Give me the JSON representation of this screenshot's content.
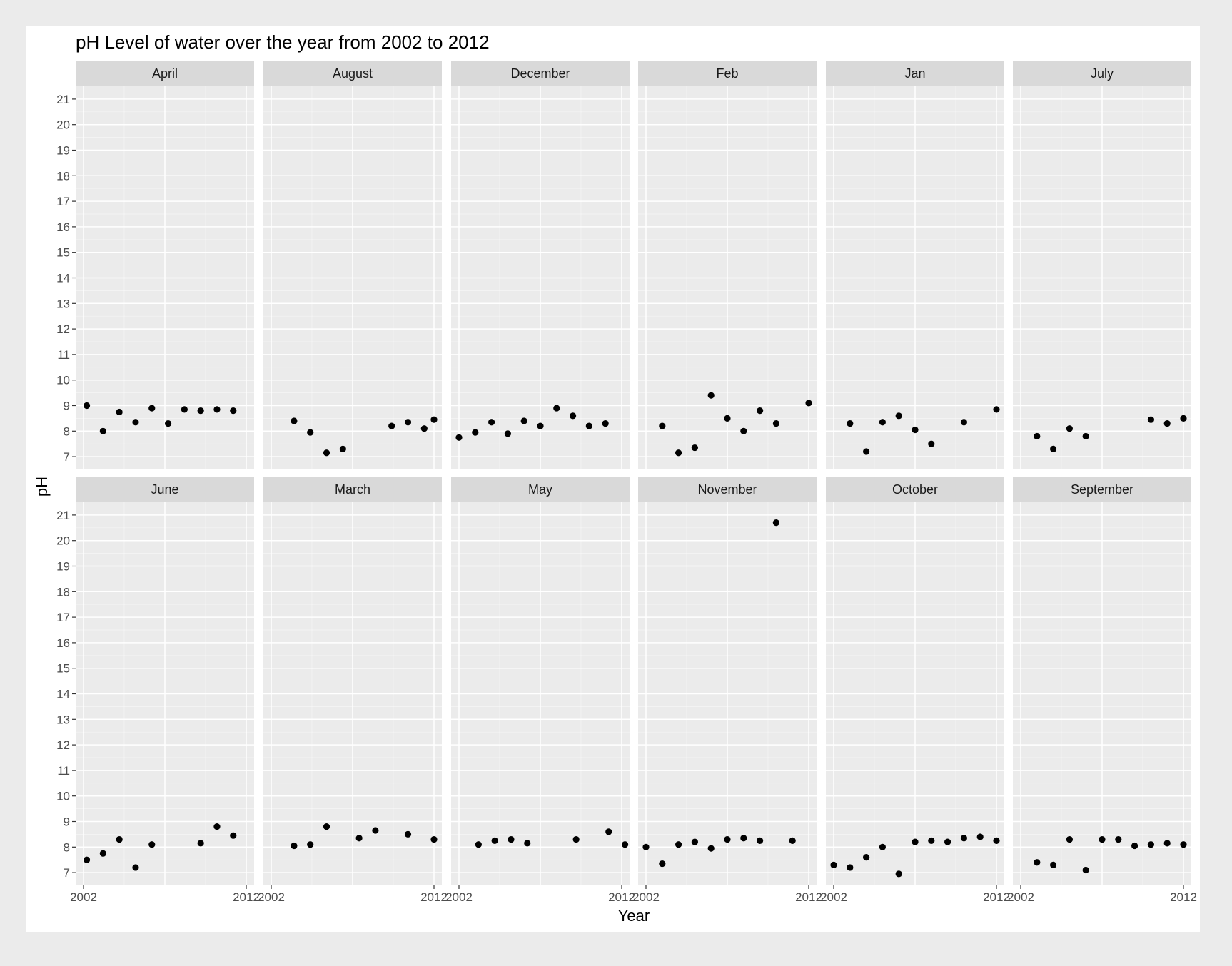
{
  "chart_data": {
    "type": "scatter",
    "title": "pH Level of water over the year from 2002 to 2012",
    "xlabel": "Year",
    "ylabel": "pH",
    "xlim": [
      2002,
      2012
    ],
    "ylim": [
      6.5,
      21.5
    ],
    "x_ticks": [
      "2002",
      "2012"
    ],
    "y_ticks": [
      7,
      8,
      9,
      10,
      11,
      12,
      13,
      14,
      15,
      16,
      17,
      18,
      19,
      20,
      21
    ],
    "facet_layout": "2 rows x 6 columns, shared axes",
    "grid": true,
    "colors": {
      "page_background": "#ebebeb",
      "plot_background": "#ebebeb",
      "strip_background": "#d9d9d9",
      "grid_major": "#ffffff",
      "point": "#000000"
    },
    "facets": [
      {
        "label": "April",
        "points": [
          [
            2002.2,
            9.0
          ],
          [
            2003.2,
            8.0
          ],
          [
            2004.2,
            8.75
          ],
          [
            2005.2,
            8.35
          ],
          [
            2006.2,
            8.9
          ],
          [
            2007.2,
            8.3
          ],
          [
            2008.2,
            8.85
          ],
          [
            2009.2,
            8.8
          ],
          [
            2010.2,
            8.85
          ],
          [
            2011.2,
            8.8
          ]
        ]
      },
      {
        "label": "August",
        "points": [
          [
            2003.4,
            8.4
          ],
          [
            2004.4,
            7.95
          ],
          [
            2005.4,
            7.15
          ],
          [
            2006.4,
            7.3
          ],
          [
            2009.4,
            8.2
          ],
          [
            2010.4,
            8.35
          ],
          [
            2011.4,
            8.1
          ],
          [
            2012.0,
            8.45
          ]
        ]
      },
      {
        "label": "December",
        "points": [
          [
            2002.0,
            7.75
          ],
          [
            2003.0,
            7.95
          ],
          [
            2004.0,
            8.35
          ],
          [
            2005.0,
            7.9
          ],
          [
            2006.0,
            8.4
          ],
          [
            2007.0,
            8.2
          ],
          [
            2008.0,
            8.9
          ],
          [
            2009.0,
            8.6
          ],
          [
            2010.0,
            8.2
          ],
          [
            2011.0,
            8.3
          ]
        ]
      },
      {
        "label": "Feb",
        "points": [
          [
            2003.0,
            8.2
          ],
          [
            2004.0,
            7.15
          ],
          [
            2005.0,
            7.35
          ],
          [
            2006.0,
            9.4
          ],
          [
            2007.0,
            8.5
          ],
          [
            2008.0,
            8.0
          ],
          [
            2009.0,
            8.8
          ],
          [
            2010.0,
            8.3
          ],
          [
            2012.0,
            9.1
          ]
        ]
      },
      {
        "label": "Jan",
        "points": [
          [
            2003.0,
            8.3
          ],
          [
            2004.0,
            7.2
          ],
          [
            2005.0,
            8.35
          ],
          [
            2006.0,
            8.6
          ],
          [
            2007.0,
            8.05
          ],
          [
            2008.0,
            7.5
          ],
          [
            2010.0,
            8.35
          ],
          [
            2012.0,
            8.85
          ]
        ]
      },
      {
        "label": "July",
        "points": [
          [
            2003.0,
            7.8
          ],
          [
            2004.0,
            7.3
          ],
          [
            2005.0,
            8.1
          ],
          [
            2006.0,
            7.8
          ],
          [
            2010.0,
            8.45
          ],
          [
            2011.0,
            8.3
          ],
          [
            2012.0,
            8.5
          ]
        ]
      },
      {
        "label": "June",
        "points": [
          [
            2002.2,
            7.5
          ],
          [
            2003.2,
            7.75
          ],
          [
            2004.2,
            8.3
          ],
          [
            2005.2,
            7.2
          ],
          [
            2006.2,
            8.1
          ],
          [
            2009.2,
            8.15
          ],
          [
            2010.2,
            8.8
          ],
          [
            2011.2,
            8.45
          ]
        ]
      },
      {
        "label": "March",
        "points": [
          [
            2003.4,
            8.05
          ],
          [
            2004.4,
            8.1
          ],
          [
            2005.4,
            8.8
          ],
          [
            2007.4,
            8.35
          ],
          [
            2008.4,
            8.65
          ],
          [
            2010.4,
            8.5
          ],
          [
            2012.0,
            8.3
          ]
        ]
      },
      {
        "label": "May",
        "points": [
          [
            2003.2,
            8.1
          ],
          [
            2004.2,
            8.25
          ],
          [
            2005.2,
            8.3
          ],
          [
            2006.2,
            8.15
          ],
          [
            2009.2,
            8.3
          ],
          [
            2011.2,
            8.6
          ],
          [
            2012.2,
            8.1
          ]
        ]
      },
      {
        "label": "November",
        "points": [
          [
            2002.0,
            8.0
          ],
          [
            2003.0,
            7.35
          ],
          [
            2004.0,
            8.1
          ],
          [
            2005.0,
            8.2
          ],
          [
            2006.0,
            7.95
          ],
          [
            2007.0,
            8.3
          ],
          [
            2008.0,
            8.35
          ],
          [
            2009.0,
            8.25
          ],
          [
            2010.0,
            20.7
          ],
          [
            2011.0,
            8.25
          ]
        ]
      },
      {
        "label": "October",
        "points": [
          [
            2002.0,
            7.3
          ],
          [
            2003.0,
            7.2
          ],
          [
            2004.0,
            7.6
          ],
          [
            2005.0,
            8.0
          ],
          [
            2006.0,
            6.95
          ],
          [
            2007.0,
            8.2
          ],
          [
            2008.0,
            8.25
          ],
          [
            2009.0,
            8.2
          ],
          [
            2010.0,
            8.35
          ],
          [
            2011.0,
            8.4
          ],
          [
            2012.0,
            8.25
          ]
        ]
      },
      {
        "label": "September",
        "points": [
          [
            2003.0,
            7.4
          ],
          [
            2004.0,
            7.3
          ],
          [
            2005.0,
            8.3
          ],
          [
            2006.0,
            7.1
          ],
          [
            2007.0,
            8.3
          ],
          [
            2008.0,
            8.3
          ],
          [
            2009.0,
            8.05
          ],
          [
            2010.0,
            8.1
          ],
          [
            2011.0,
            8.15
          ],
          [
            2012.0,
            8.1
          ]
        ]
      }
    ]
  }
}
